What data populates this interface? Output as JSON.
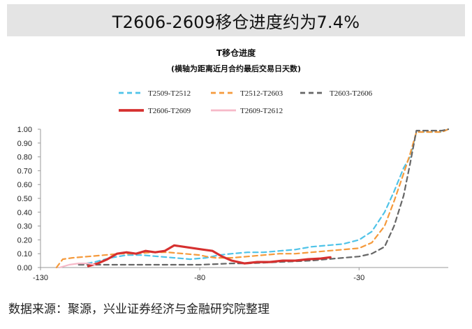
{
  "header": {
    "banner_title": "T2606-2609移仓进度约为7.4%"
  },
  "footer": {
    "source_text": "数据来源：聚源，兴业证券经济与金融研究院整理"
  },
  "chart_data": {
    "type": "line",
    "title": "T移仓进度",
    "subtitle": "(横轴为距离近月合约最后交易日天数)",
    "xlabel": "",
    "ylabel": "",
    "xlim": [
      -130,
      -2
    ],
    "ylim": [
      0,
      1
    ],
    "xticks": [
      -130,
      -80,
      -30
    ],
    "yticks": [
      "0.00",
      "0.10",
      "0.20",
      "0.30",
      "0.40",
      "0.50",
      "0.60",
      "0.70",
      "0.80",
      "0.90",
      "1.00"
    ],
    "grid": false,
    "legend_position": "top",
    "series": [
      {
        "name": "T2509-T2512",
        "color": "#4fc3e8",
        "dash": "7,5",
        "width": 2.2,
        "points": [
          [
            -118,
            0.02
          ],
          [
            -113,
            0.04
          ],
          [
            -108,
            0.07
          ],
          [
            -103,
            0.09
          ],
          [
            -98,
            0.09
          ],
          [
            -93,
            0.08
          ],
          [
            -88,
            0.07
          ],
          [
            -83,
            0.06
          ],
          [
            -78,
            0.07
          ],
          [
            -74,
            0.09
          ],
          [
            -70,
            0.1
          ],
          [
            -65,
            0.11
          ],
          [
            -60,
            0.11
          ],
          [
            -55,
            0.12
          ],
          [
            -50,
            0.13
          ],
          [
            -45,
            0.15
          ],
          [
            -40,
            0.16
          ],
          [
            -35,
            0.17
          ],
          [
            -30,
            0.2
          ],
          [
            -26,
            0.26
          ],
          [
            -22,
            0.4
          ],
          [
            -19,
            0.55
          ],
          [
            -16,
            0.72
          ],
          [
            -14,
            0.8
          ],
          [
            -12,
            0.98
          ],
          [
            -8,
            0.98
          ],
          [
            -4,
            0.98
          ],
          [
            -2,
            1.0
          ]
        ]
      },
      {
        "name": "T2512-T2603",
        "color": "#f59a3c",
        "dash": "7,5",
        "width": 2.2,
        "points": [
          [
            -125,
            0.0
          ],
          [
            -123,
            0.06
          ],
          [
            -120,
            0.07
          ],
          [
            -115,
            0.08
          ],
          [
            -110,
            0.09
          ],
          [
            -105,
            0.1
          ],
          [
            -100,
            0.1
          ],
          [
            -95,
            0.11
          ],
          [
            -90,
            0.11
          ],
          [
            -85,
            0.1
          ],
          [
            -80,
            0.09
          ],
          [
            -78,
            0.08
          ],
          [
            -75,
            0.07
          ],
          [
            -70,
            0.07
          ],
          [
            -65,
            0.08
          ],
          [
            -60,
            0.09
          ],
          [
            -55,
            0.1
          ],
          [
            -50,
            0.1
          ],
          [
            -45,
            0.11
          ],
          [
            -40,
            0.12
          ],
          [
            -35,
            0.13
          ],
          [
            -30,
            0.14
          ],
          [
            -26,
            0.18
          ],
          [
            -22,
            0.3
          ],
          [
            -19,
            0.48
          ],
          [
            -16,
            0.68
          ],
          [
            -14,
            0.82
          ],
          [
            -12,
            0.98
          ],
          [
            -8,
            0.98
          ],
          [
            -4,
            0.98
          ],
          [
            -2,
            1.0
          ]
        ]
      },
      {
        "name": "T2603-T2606",
        "color": "#666666",
        "dash": "7,5",
        "width": 2.2,
        "points": [
          [
            -118,
            0.02
          ],
          [
            -110,
            0.02
          ],
          [
            -100,
            0.02
          ],
          [
            -90,
            0.02
          ],
          [
            -80,
            0.02
          ],
          [
            -75,
            0.025
          ],
          [
            -70,
            0.03
          ],
          [
            -65,
            0.03
          ],
          [
            -60,
            0.035
          ],
          [
            -55,
            0.04
          ],
          [
            -50,
            0.045
          ],
          [
            -45,
            0.05
          ],
          [
            -40,
            0.06
          ],
          [
            -35,
            0.07
          ],
          [
            -30,
            0.08
          ],
          [
            -26,
            0.1
          ],
          [
            -22,
            0.15
          ],
          [
            -19,
            0.3
          ],
          [
            -16,
            0.52
          ],
          [
            -14,
            0.75
          ],
          [
            -12,
            0.99
          ],
          [
            -8,
            0.99
          ],
          [
            -4,
            0.99
          ],
          [
            -2,
            1.0
          ]
        ]
      },
      {
        "name": "T2606-T2609",
        "color": "#d6302f",
        "dash": "",
        "width": 3.2,
        "points": [
          [
            -115,
            0.01
          ],
          [
            -112,
            0.03
          ],
          [
            -109,
            0.06
          ],
          [
            -106,
            0.1
          ],
          [
            -103,
            0.11
          ],
          [
            -100,
            0.1
          ],
          [
            -97,
            0.12
          ],
          [
            -94,
            0.11
          ],
          [
            -91,
            0.12
          ],
          [
            -88,
            0.16
          ],
          [
            -85,
            0.15
          ],
          [
            -82,
            0.14
          ],
          [
            -79,
            0.13
          ],
          [
            -76,
            0.12
          ],
          [
            -73,
            0.08
          ],
          [
            -70,
            0.05
          ],
          [
            -66,
            0.03
          ],
          [
            -62,
            0.04
          ],
          [
            -58,
            0.04
          ],
          [
            -54,
            0.05
          ],
          [
            -50,
            0.05
          ],
          [
            -46,
            0.06
          ],
          [
            -42,
            0.065
          ],
          [
            -39,
            0.074
          ]
        ]
      },
      {
        "name": "T2609-T2612",
        "color": "#f6b9c8",
        "dash": "",
        "width": 2.2,
        "points": [
          [
            -124,
            0.0
          ],
          [
            -121,
            0.02
          ],
          [
            -118,
            0.03
          ],
          [
            -115,
            0.03
          ],
          [
            -113,
            0.02
          ]
        ]
      }
    ]
  }
}
